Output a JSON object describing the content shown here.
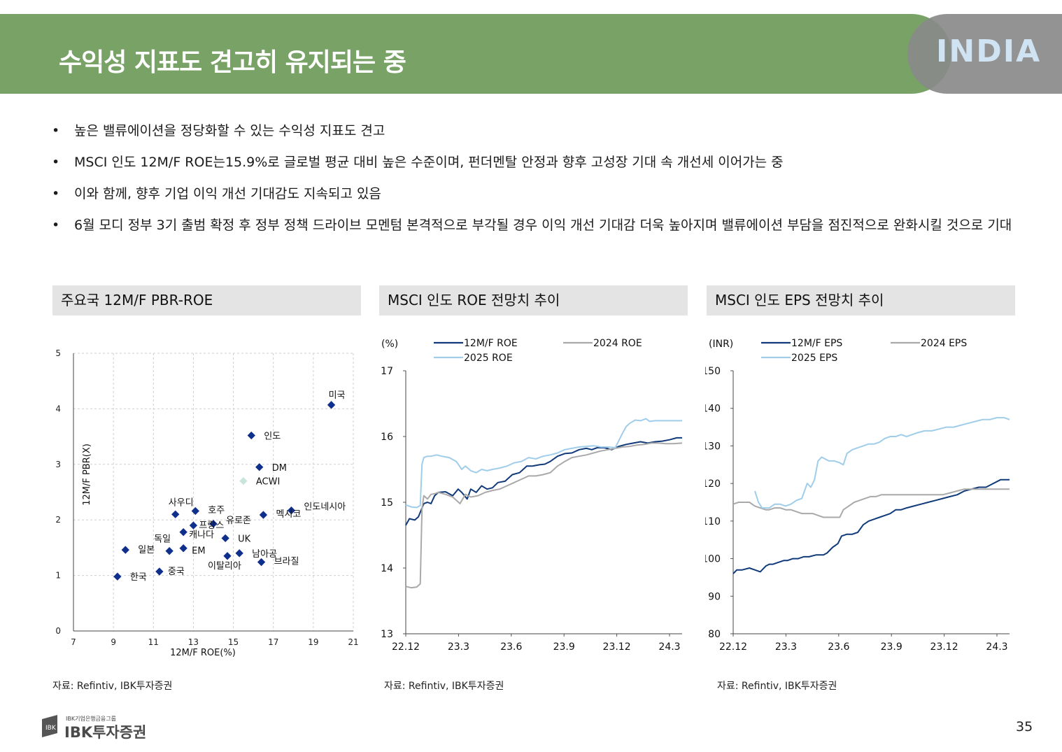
{
  "header": {
    "title": "수익성 지표도 견고히 유지되는 중",
    "logo_text": "INDIA"
  },
  "bullets": [
    "높은 밸류에이션을 정당화할 수 있는 수익성 지표도 견고",
    "MSCI 인도 12M/F ROE는15.9%로 글로벌 평균 대비 높은 수준이며, 펀더멘탈 안정과 향후 고성장 기대 속 개선세 이어가는 중",
    "이와 함께, 향후 기업 이익 개선 기대감도 지속되고 있음",
    "6월 모디 정부 3기 출범 확정 후 정부 정책 드라이브 모멘텀 본격적으로 부각될 경우 이익 개선 기대감 더욱 높아지며 밸류에이션 부담을 점진적으로 완화시킬 것으로 기대"
  ],
  "panels": [
    {
      "title": "주요국 12M/F PBR-ROE",
      "source": "자료: Refintiv, IBK투자증권"
    },
    {
      "title": "MSCI 인도 ROE 전망치 추이",
      "source": "자료: Refintiv, IBK투자증권"
    },
    {
      "title": "MSCI 인도 EPS 전망치 추이",
      "source": "자료: Refintiv, IBK투자증권"
    }
  ],
  "footer": {
    "company": "IBK투자증권",
    "group": "IBK기업은행금융그룹",
    "page": "35"
  },
  "colors": {
    "banner": "#79a267",
    "navy": "#103a7a",
    "gray": "#a9a9a9",
    "lightblue": "#9fcdea",
    "marker": "#0f2f8c",
    "acwi": "#c9e6dc"
  },
  "chart_data": [
    {
      "type": "scatter",
      "xlabel": "12M/F ROE(%)",
      "ylabel": "12M/F PBR(X)",
      "xlim": [
        7,
        21
      ],
      "ylim": [
        0,
        5
      ],
      "xticks": [
        7,
        9,
        11,
        13,
        15,
        17,
        19,
        21
      ],
      "yticks": [
        0,
        1,
        2,
        3,
        4,
        5
      ],
      "grid": true,
      "points": [
        {
          "label": "미국",
          "x": 19.9,
          "y": 4.07
        },
        {
          "label": "인도",
          "x": 15.9,
          "y": 3.52
        },
        {
          "label": "DM",
          "x": 16.3,
          "y": 2.95
        },
        {
          "label": "ACWI",
          "x": 15.5,
          "y": 2.7,
          "highlight": true
        },
        {
          "label": "인도네시아",
          "x": 17.9,
          "y": 2.17
        },
        {
          "label": "멕시코",
          "x": 16.5,
          "y": 2.09
        },
        {
          "label": "사우디",
          "x": 12.1,
          "y": 2.1
        },
        {
          "label": "호주",
          "x": 13.1,
          "y": 2.16
        },
        {
          "label": "유로존",
          "x": 14.0,
          "y": 1.93
        },
        {
          "label": "프랑스",
          "x": 13.0,
          "y": 1.9
        },
        {
          "label": "캐나다",
          "x": 12.5,
          "y": 1.78
        },
        {
          "label": "UK",
          "x": 14.6,
          "y": 1.67
        },
        {
          "label": "독일",
          "x": 11.8,
          "y": 1.44
        },
        {
          "label": "EM",
          "x": 12.5,
          "y": 1.49
        },
        {
          "label": "일본",
          "x": 9.6,
          "y": 1.46
        },
        {
          "label": "남아공",
          "x": 15.3,
          "y": 1.4
        },
        {
          "label": "이탈리아",
          "x": 14.7,
          "y": 1.35
        },
        {
          "label": "브라질",
          "x": 16.4,
          "y": 1.24
        },
        {
          "label": "중국",
          "x": 11.3,
          "y": 1.07
        },
        {
          "label": "한국",
          "x": 9.2,
          "y": 0.98
        }
      ]
    },
    {
      "type": "line",
      "unit": "(%)",
      "ylim": [
        13,
        17
      ],
      "yticks": [
        13,
        14,
        15,
        16,
        17
      ],
      "xtick_labels": [
        "22.12",
        "23.3",
        "23.6",
        "23.9",
        "23.12",
        "24.3"
      ],
      "x_range": [
        0,
        15.3
      ],
      "series": [
        {
          "name": "12M/F ROE",
          "color": "#103a7a",
          "x": [
            0,
            0.2,
            0.5,
            0.7,
            1.0,
            1.2,
            1.4,
            1.6,
            1.8,
            2.2,
            2.6,
            2.9,
            3.1,
            3.4,
            3.6,
            3.9,
            4.2,
            4.5,
            4.8,
            5.1,
            5.5,
            5.9,
            6.3,
            6.7,
            7.0,
            7.4,
            7.7,
            8.0,
            8.4,
            8.8,
            9.2,
            9.6,
            10.0,
            10.3,
            10.6,
            11.0,
            11.4,
            11.8,
            12.2,
            12.6,
            13.0,
            13.4,
            13.8,
            14.2,
            14.6,
            15.0,
            15.3
          ],
          "y": [
            14.65,
            14.75,
            14.73,
            14.78,
            14.98,
            15.0,
            14.98,
            15.1,
            15.15,
            15.16,
            15.1,
            15.2,
            15.15,
            15.05,
            15.2,
            15.15,
            15.25,
            15.2,
            15.22,
            15.3,
            15.32,
            15.42,
            15.45,
            15.55,
            15.55,
            15.57,
            15.58,
            15.62,
            15.7,
            15.74,
            15.75,
            15.8,
            15.82,
            15.8,
            15.83,
            15.83,
            15.8,
            15.85,
            15.88,
            15.9,
            15.92,
            15.9,
            15.92,
            15.93,
            15.95,
            15.98,
            15.98
          ]
        },
        {
          "name": "2024 ROE",
          "color": "#a9a9a9",
          "x": [
            0,
            0.3,
            0.6,
            0.8,
            0.9,
            1.0,
            1.2,
            1.4,
            1.6,
            1.8,
            2.2,
            2.6,
            3.0,
            3.3,
            3.6,
            4.0,
            4.4,
            4.8,
            5.2,
            5.6,
            6.0,
            6.4,
            6.8,
            7.2,
            7.6,
            8.0,
            8.4,
            8.8,
            9.2,
            9.6,
            10.0,
            10.4,
            10.8,
            11.2,
            11.6,
            12.0,
            12.4,
            12.8,
            13.2,
            13.6,
            14.0,
            14.4,
            14.8,
            15.3
          ],
          "y": [
            13.72,
            13.7,
            13.71,
            13.76,
            14.9,
            15.1,
            15.05,
            15.12,
            15.13,
            15.15,
            15.12,
            15.08,
            14.98,
            15.12,
            15.08,
            15.1,
            15.15,
            15.18,
            15.2,
            15.25,
            15.3,
            15.35,
            15.4,
            15.4,
            15.42,
            15.45,
            15.55,
            15.62,
            15.68,
            15.7,
            15.72,
            15.75,
            15.78,
            15.8,
            15.82,
            15.84,
            15.85,
            15.87,
            15.88,
            15.9,
            15.9,
            15.89,
            15.89,
            15.9
          ]
        },
        {
          "name": "2025 ROE",
          "color": "#9fcdea",
          "x": [
            0,
            0.3,
            0.6,
            0.8,
            0.9,
            1.0,
            1.2,
            1.4,
            1.7,
            2.0,
            2.4,
            2.8,
            3.1,
            3.3,
            3.6,
            3.9,
            4.2,
            4.5,
            4.8,
            5.2,
            5.6,
            6.0,
            6.4,
            6.8,
            7.2,
            7.6,
            8.0,
            8.4,
            8.8,
            9.2,
            9.6,
            10.0,
            10.4,
            10.8,
            11.2,
            11.6,
            12.0,
            12.2,
            12.4,
            12.7,
            13.0,
            13.3,
            13.5,
            13.8,
            14.2,
            14.6,
            15.0,
            15.3
          ],
          "y": [
            14.96,
            14.93,
            14.92,
            14.95,
            15.58,
            15.68,
            15.7,
            15.7,
            15.72,
            15.7,
            15.68,
            15.62,
            15.5,
            15.55,
            15.48,
            15.45,
            15.5,
            15.48,
            15.5,
            15.52,
            15.55,
            15.6,
            15.62,
            15.68,
            15.66,
            15.7,
            15.72,
            15.75,
            15.8,
            15.82,
            15.84,
            15.85,
            15.86,
            15.84,
            15.84,
            15.83,
            16.05,
            16.15,
            16.2,
            16.25,
            16.24,
            16.27,
            16.23,
            16.24,
            16.24,
            16.24,
            16.24,
            16.24
          ]
        }
      ]
    },
    {
      "type": "line",
      "unit": "(INR)",
      "ylim": [
        80,
        150
      ],
      "yticks": [
        80,
        90,
        100,
        110,
        120,
        130,
        140,
        150
      ],
      "xtick_labels": [
        "22.12",
        "23.3",
        "23.6",
        "23.9",
        "23.12",
        "24.3"
      ],
      "x_range": [
        0,
        15.3
      ],
      "series": [
        {
          "name": "12M/F EPS",
          "color": "#103a7a",
          "x": [
            0,
            0.2,
            0.5,
            0.9,
            1.2,
            1.5,
            1.8,
            2.0,
            2.2,
            2.5,
            2.8,
            3.0,
            3.3,
            3.6,
            3.9,
            4.2,
            4.6,
            5.0,
            5.2,
            5.5,
            5.8,
            6.0,
            6.3,
            6.6,
            6.9,
            7.2,
            7.5,
            7.8,
            8.1,
            8.4,
            8.7,
            9.0,
            9.3,
            9.6,
            10.0,
            10.4,
            10.8,
            11.2,
            11.6,
            12.0,
            12.4,
            12.8,
            13.2,
            13.6,
            14.0,
            14.4,
            14.8,
            15.3
          ],
          "y": [
            96,
            97,
            97,
            97.5,
            97,
            96.5,
            98,
            98.5,
            98.5,
            99,
            99.5,
            99.5,
            100,
            100,
            100.5,
            100.5,
            101,
            101,
            101.5,
            103,
            104,
            106,
            106.5,
            106.5,
            107,
            109,
            110,
            110.5,
            111,
            111.5,
            112,
            113,
            113,
            113.5,
            114,
            114.5,
            115,
            115.5,
            116,
            116.5,
            117,
            118,
            118.5,
            119,
            119,
            120,
            121,
            121
          ]
        },
        {
          "name": "2024 EPS",
          "color": "#a9a9a9",
          "x": [
            0,
            0.3,
            0.6,
            0.9,
            1.2,
            1.5,
            1.8,
            2.0,
            2.3,
            2.6,
            2.9,
            3.2,
            3.5,
            3.8,
            4.1,
            4.4,
            4.7,
            5.0,
            5.3,
            5.6,
            5.9,
            6.1,
            6.4,
            6.7,
            7.0,
            7.3,
            7.6,
            7.9,
            8.2,
            8.5,
            8.8,
            9.1,
            9.4,
            9.7,
            10.0,
            10.4,
            10.8,
            11.2,
            11.6,
            12.0,
            12.4,
            12.8,
            13.2,
            13.6,
            14.0,
            14.4,
            14.8,
            15.3
          ],
          "y": [
            114.5,
            115,
            115,
            115,
            114,
            113.5,
            113,
            113,
            113.5,
            113.5,
            113,
            113,
            112.5,
            112,
            112,
            112,
            111.5,
            111,
            111,
            111,
            111,
            113,
            114,
            115,
            115.5,
            116,
            116.5,
            116.5,
            117,
            117,
            117,
            117,
            117,
            117,
            117,
            117,
            117,
            117,
            117,
            117.5,
            118,
            118.5,
            118.5,
            118.5,
            118.5,
            118.5,
            118.5,
            118.5
          ]
        },
        {
          "name": "2025 EPS",
          "color": "#9fcdea",
          "x": [
            1.2,
            1.4,
            1.6,
            1.8,
            2.0,
            2.3,
            2.6,
            2.9,
            3.2,
            3.5,
            3.8,
            4.1,
            4.3,
            4.5,
            4.7,
            4.9,
            5.1,
            5.3,
            5.6,
            5.9,
            6.1,
            6.3,
            6.6,
            6.9,
            7.2,
            7.5,
            7.8,
            8.1,
            8.4,
            8.7,
            9.0,
            9.3,
            9.6,
            9.9,
            10.2,
            10.6,
            11.0,
            11.4,
            11.8,
            12.2,
            12.6,
            13.0,
            13.4,
            13.8,
            14.2,
            14.6,
            15.0,
            15.3
          ],
          "y": [
            118,
            115,
            113.5,
            113.5,
            113.5,
            114.5,
            114.5,
            114,
            114.5,
            115.5,
            116,
            120,
            119,
            121,
            126,
            127,
            126.5,
            126,
            126,
            125.5,
            125,
            128,
            129,
            129.5,
            130,
            130.5,
            130.5,
            131,
            132,
            132.5,
            132.5,
            133,
            132.5,
            133,
            133.5,
            134,
            134,
            134.5,
            135,
            135,
            135.5,
            136,
            136.5,
            137,
            137,
            137.5,
            137.5,
            137
          ]
        }
      ]
    }
  ]
}
